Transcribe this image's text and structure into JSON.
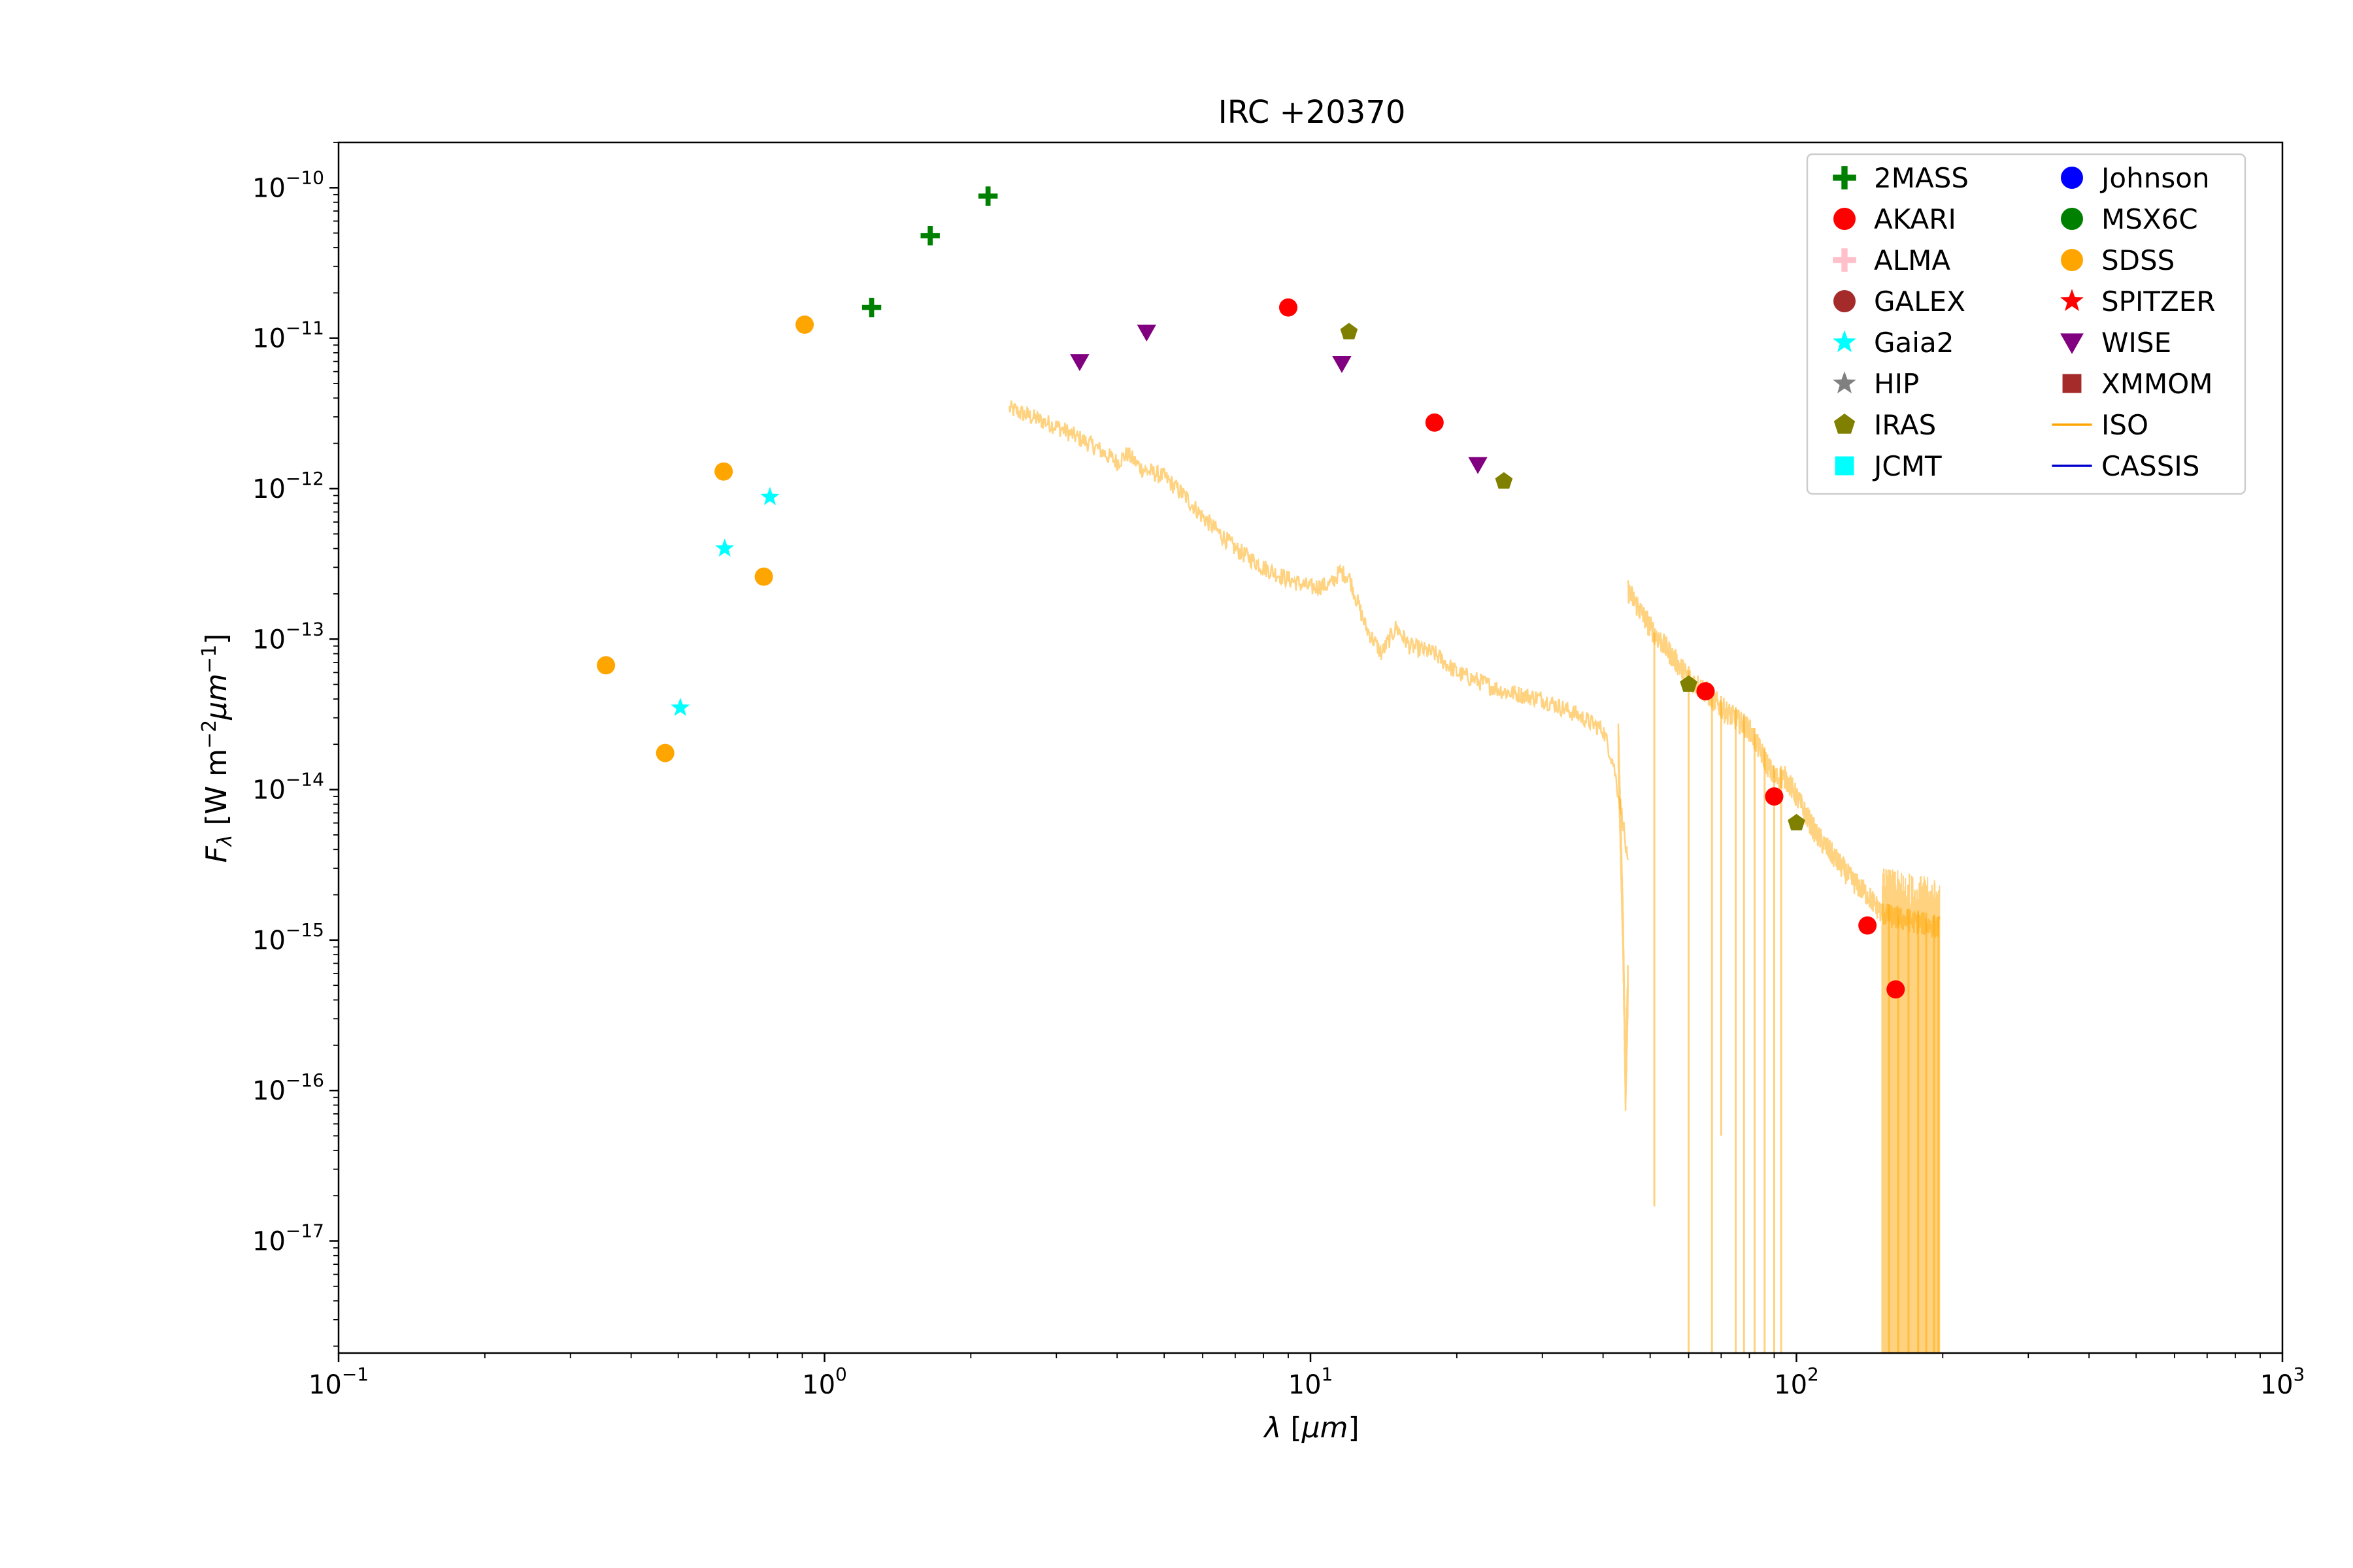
{
  "chart_data": {
    "type": "scatter",
    "title": "IRC +20370",
    "xlabel": "λ [μm]",
    "ylabel": "F_λ [W m^-2 μm^-1]",
    "xscale": "log",
    "yscale": "log",
    "xlim": [
      0.1,
      1000
    ],
    "ylim": [
      1.8e-18,
      2e-10
    ],
    "x_ticks": [
      {
        "base": "10",
        "exp": "−1"
      },
      {
        "base": "10",
        "exp": "0"
      },
      {
        "base": "10",
        "exp": "1"
      },
      {
        "base": "10",
        "exp": "2"
      },
      {
        "base": "10",
        "exp": "3"
      }
    ],
    "y_ticks": [
      {
        "base": "10",
        "exp": "−10"
      },
      {
        "base": "10",
        "exp": "−11"
      },
      {
        "base": "10",
        "exp": "−12"
      },
      {
        "base": "10",
        "exp": "−13"
      },
      {
        "base": "10",
        "exp": "−14"
      },
      {
        "base": "10",
        "exp": "−15"
      },
      {
        "base": "10",
        "exp": "−16"
      },
      {
        "base": "10",
        "exp": "−17"
      }
    ],
    "legend_position": "top-right",
    "legend": [
      {
        "name": "2MASS",
        "marker": "plus",
        "color": "#008000"
      },
      {
        "name": "AKARI",
        "marker": "circle",
        "color": "#ff0000"
      },
      {
        "name": "ALMA",
        "marker": "plus",
        "color": "#ffc0cb"
      },
      {
        "name": "GALEX",
        "marker": "circle",
        "color": "#a52a2a"
      },
      {
        "name": "Gaia2",
        "marker": "star",
        "color": "#00ffff"
      },
      {
        "name": "HIP",
        "marker": "star",
        "color": "#808080"
      },
      {
        "name": "IRAS",
        "marker": "pentagon",
        "color": "#808000"
      },
      {
        "name": "JCMT",
        "marker": "square",
        "color": "#00ffff"
      },
      {
        "name": "Johnson",
        "marker": "circle",
        "color": "#0000ff"
      },
      {
        "name": "MSX6C",
        "marker": "circle",
        "color": "#008000"
      },
      {
        "name": "SDSS",
        "marker": "circle",
        "color": "#ffa500"
      },
      {
        "name": "SPITZER",
        "marker": "star",
        "color": "#ff0000"
      },
      {
        "name": "WISE",
        "marker": "triangle-down",
        "color": "#800080"
      },
      {
        "name": "XMMOM",
        "marker": "square",
        "color": "#a52a2a"
      },
      {
        "name": "ISO",
        "marker": "line",
        "color": "#ffa500"
      },
      {
        "name": "CASSIS",
        "marker": "line",
        "color": "#0000cd"
      }
    ],
    "series": [
      {
        "name": "2MASS",
        "marker": "plus",
        "color": "#008000",
        "points": [
          [
            1.25,
            1.6e-11
          ],
          [
            1.65,
            4.8e-11
          ],
          [
            2.17,
            8.8e-11
          ]
        ]
      },
      {
        "name": "SDSS",
        "marker": "circle",
        "color": "#ffa500",
        "points": [
          [
            0.355,
            6.7e-14
          ],
          [
            0.47,
            1.75e-14
          ],
          [
            0.62,
            1.3e-12
          ],
          [
            0.75,
            2.6e-13
          ],
          [
            0.91,
            1.23e-11
          ]
        ]
      },
      {
        "name": "Gaia2",
        "marker": "star",
        "color": "#00ffff",
        "points": [
          [
            0.505,
            3.5e-14
          ],
          [
            0.623,
            4e-13
          ],
          [
            0.772,
            8.8e-13
          ]
        ]
      },
      {
        "name": "WISE",
        "marker": "triangle-down",
        "color": "#800080",
        "points": [
          [
            3.35,
            7e-12
          ],
          [
            4.6,
            1.1e-11
          ],
          [
            11.6,
            6.8e-12
          ],
          [
            22.1,
            1.45e-12
          ]
        ]
      },
      {
        "name": "AKARI",
        "marker": "circle",
        "color": "#ff0000",
        "points": [
          [
            9.0,
            1.6e-11
          ],
          [
            18.0,
            2.75e-12
          ],
          [
            65,
            4.5e-14
          ],
          [
            90,
            9e-15
          ],
          [
            140,
            1.25e-15
          ],
          [
            160,
            4.7e-16
          ]
        ]
      },
      {
        "name": "IRAS",
        "marker": "pentagon",
        "color": "#808000",
        "points": [
          [
            12,
            1.1e-11
          ],
          [
            25,
            1.12e-12
          ],
          [
            60,
            5e-14
          ],
          [
            100,
            6e-15
          ]
        ]
      }
    ],
    "iso_spectrum": {
      "name": "ISO",
      "color": "#ffa500",
      "opacity": 0.5,
      "segments": [
        {
          "range": [
            2.4,
            45
          ],
          "noise_dex": 0.06,
          "points": [
            [
              2.4,
              3.4e-12
            ],
            [
              3.0,
              2.6e-12
            ],
            [
              3.6,
              1.9e-12
            ],
            [
              4.0,
              1.5e-12
            ],
            [
              4.2,
              1.7e-12
            ],
            [
              4.5,
              1.35e-12
            ],
            [
              5.0,
              1.2e-12
            ],
            [
              5.5,
              9e-13
            ],
            [
              6.0,
              6.5e-13
            ],
            [
              7.0,
              4e-13
            ],
            [
              8.0,
              3e-13
            ],
            [
              9.0,
              2.5e-13
            ],
            [
              10.0,
              2.2e-13
            ],
            [
              11.0,
              2.3e-13
            ],
            [
              11.5,
              2.8e-13
            ],
            [
              12.0,
              2.6e-13
            ],
            [
              13.0,
              1.2e-13
            ],
            [
              14.0,
              8e-14
            ],
            [
              15.0,
              1.2e-13
            ],
            [
              16.0,
              9e-14
            ],
            [
              18.0,
              8e-14
            ],
            [
              20.0,
              6e-14
            ],
            [
              25.0,
              4.5e-14
            ],
            [
              30.0,
              4e-14
            ],
            [
              35.0,
              3.2e-14
            ],
            [
              40.0,
              2.5e-14
            ],
            [
              42.0,
              1.5e-14
            ],
            [
              44.0,
              6e-15
            ],
            [
              45.0,
              3e-15
            ]
          ]
        },
        {
          "range": [
            43,
            45
          ],
          "noise_dex": 0.15,
          "points": [
            [
              43.0,
              2e-14
            ],
            [
              44.0,
              1e-15
            ],
            [
              44.5,
              1e-16
            ],
            [
              45.0,
              5e-16
            ]
          ]
        },
        {
          "range": [
            45,
            197
          ],
          "noise_dex": 0.08,
          "points": [
            [
              45,
              2.1e-13
            ],
            [
              50,
              1.2e-13
            ],
            [
              55,
              8e-14
            ],
            [
              60,
              5.5e-14
            ],
            [
              65,
              4.5e-14
            ],
            [
              70,
              3.5e-14
            ],
            [
              80,
              2.5e-14
            ],
            [
              90,
              1.2e-14
            ],
            [
              95,
              1.2e-14
            ],
            [
              100,
              9e-15
            ],
            [
              110,
              5e-15
            ],
            [
              120,
              3.5e-15
            ],
            [
              130,
              2.5e-15
            ],
            [
              140,
              2e-15
            ],
            [
              150,
              1.5e-15
            ],
            [
              160,
              1.4e-15
            ],
            [
              180,
              1.3e-15
            ],
            [
              197,
              1.2e-15
            ]
          ]
        }
      ],
      "dropouts": [
        [
          51,
          1.7e-17
        ],
        [
          60,
          1e-18
        ],
        [
          67,
          1e-18
        ],
        [
          70,
          5e-17
        ],
        [
          75,
          1e-18
        ],
        [
          78,
          1e-18
        ],
        [
          82,
          1e-18
        ],
        [
          86,
          1e-18
        ],
        [
          90,
          1e-18
        ],
        [
          93,
          1e-18
        ],
        [
          155,
          1e-18
        ],
        [
          162,
          1e-18
        ],
        [
          170,
          1e-18
        ],
        [
          178,
          1e-18
        ],
        [
          185,
          1e-18
        ],
        [
          192,
          1e-18
        ],
        [
          196,
          1e-18
        ]
      ]
    }
  }
}
